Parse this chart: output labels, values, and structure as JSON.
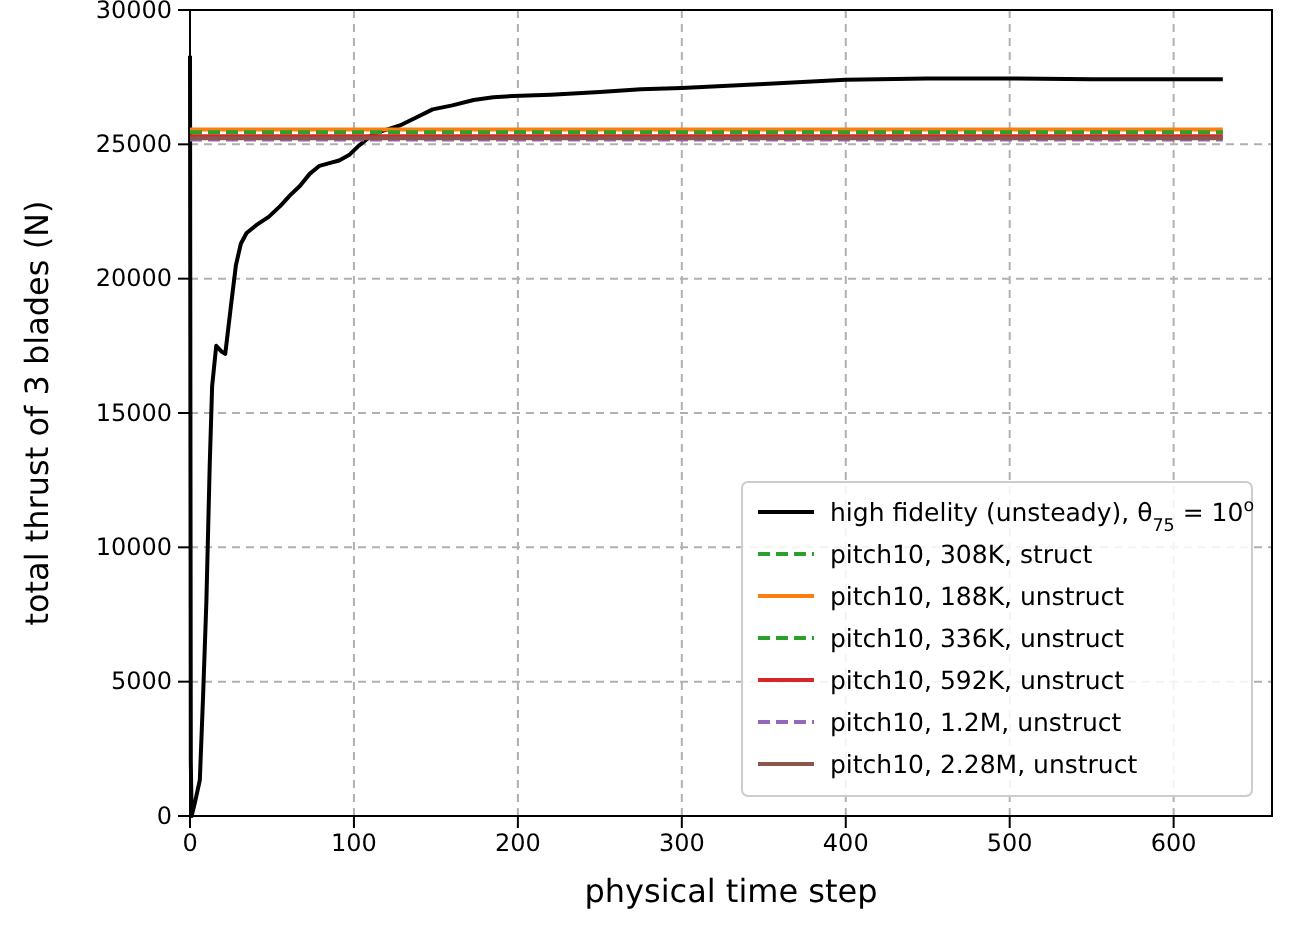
{
  "chart_data": {
    "type": "line",
    "xlabel": "physical time step",
    "ylabel": "total thrust of 3 blades (N)",
    "xlim": [
      0,
      660
    ],
    "ylim": [
      0,
      30000
    ],
    "xticks": [
      0,
      100,
      200,
      300,
      400,
      500,
      600
    ],
    "yticks": [
      0,
      5000,
      10000,
      15000,
      20000,
      25000,
      30000
    ],
    "grid": true,
    "legend": "bottom right",
    "marker": "none",
    "series": [
      {
        "name": "high fidelity (unsteady), θ$_{75}$ = 10$^{o}$",
        "color": "#000000",
        "line_style": "solid",
        "x": [
          0,
          0.5,
          1,
          3,
          6,
          8,
          10,
          12,
          13.5,
          16,
          19,
          21.5,
          25,
          28,
          31,
          34.5,
          40.6,
          48,
          55,
          61,
          67,
          73,
          79,
          85,
          91,
          97,
          103,
          112,
          120,
          128,
          138,
          148,
          160,
          173,
          185,
          197,
          220,
          250,
          275,
          300,
          350,
          400,
          450,
          500,
          550,
          600,
          630
        ],
        "values": [
          28300,
          2000,
          0,
          500,
          1340,
          4500,
          8000,
          13000,
          16000,
          17500,
          17300,
          17200,
          19000,
          20500,
          21300,
          21700,
          22000,
          22300,
          22700,
          23100,
          23450,
          23900,
          24200,
          24300,
          24400,
          24600,
          24950,
          25400,
          25550,
          25700,
          26000,
          26300,
          26450,
          26650,
          26750,
          26800,
          26850,
          26950,
          27050,
          27100,
          27250,
          27400,
          27450,
          27450,
          27420,
          27420,
          27420
        ]
      },
      {
        "name": "pitch10, 308K, struct",
        "color": "#2ca02c",
        "line_style": "dashed",
        "x": [
          0,
          630
        ],
        "values": [
          25450,
          25450
        ]
      },
      {
        "name": "pitch10, 188K, unstruct",
        "color": "#ff7f0e",
        "line_style": "solid",
        "x": [
          0,
          630
        ],
        "values": [
          25550,
          25550
        ]
      },
      {
        "name": "pitch10, 336K, unstruct",
        "color": "#2ca02c",
        "line_style": "dashed",
        "x": [
          0,
          630
        ],
        "values": [
          25450,
          25450
        ]
      },
      {
        "name": "pitch10, 592K, unstruct",
        "color": "#d62728",
        "line_style": "solid",
        "x": [
          0,
          630
        ],
        "values": [
          25300,
          25300
        ]
      },
      {
        "name": "pitch10, 1.2M, unstruct",
        "color": "#9467bd",
        "line_style": "dashed",
        "x": [
          0,
          630
        ],
        "values": [
          25180,
          25180
        ]
      },
      {
        "name": "pitch10, 2.28M, unstruct",
        "color": "#8c564b",
        "line_style": "solid",
        "x": [
          0,
          630
        ],
        "values": [
          25230,
          25230
        ]
      }
    ]
  }
}
